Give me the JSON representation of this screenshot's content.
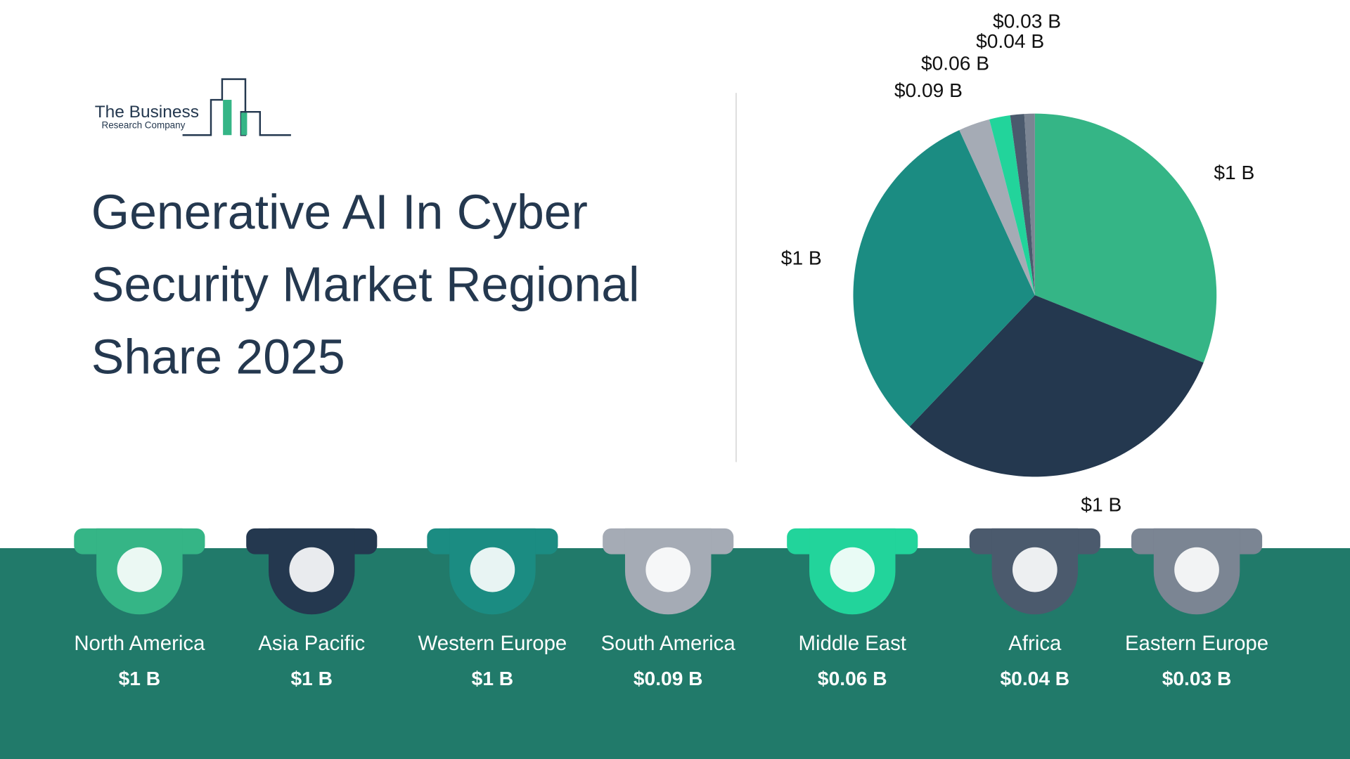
{
  "logo": {
    "line1": "The Business",
    "line2": "Research Company"
  },
  "chart_data": {
    "type": "pie",
    "title": "Generative AI In Cyber Security Market Regional Share 2025",
    "categories": [
      "North America",
      "Asia Pacific",
      "Western Europe",
      "South America",
      "Middle East",
      "Africa",
      "Eastern Europe"
    ],
    "values": [
      1,
      1,
      1,
      0.09,
      0.06,
      0.04,
      0.03
    ],
    "value_labels": [
      "$1 B",
      "$1 B",
      "$1 B",
      "$0.09 B",
      "$0.06 B",
      "$0.04 B",
      "$0.03 B"
    ],
    "colors": [
      "#35b586",
      "#24384f",
      "#1b8c82",
      "#a5abb5",
      "#22d49b",
      "#4b5a6d",
      "#7b8593"
    ]
  }
}
